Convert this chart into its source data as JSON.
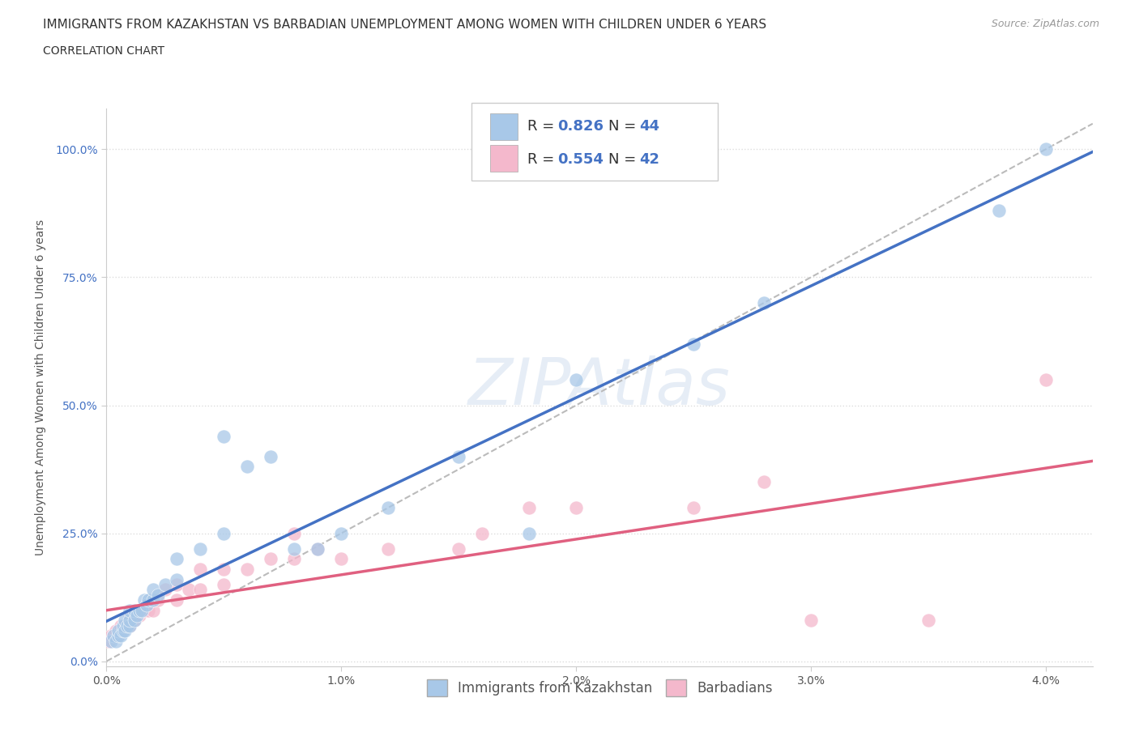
{
  "title": "IMMIGRANTS FROM KAZAKHSTAN VS BARBADIAN UNEMPLOYMENT AMONG WOMEN WITH CHILDREN UNDER 6 YEARS",
  "subtitle": "CORRELATION CHART",
  "source": "Source: ZipAtlas.com",
  "ylabel": "Unemployment Among Women with Children Under 6 years",
  "xlim": [
    0.0,
    0.042
  ],
  "ylim": [
    -0.01,
    1.08
  ],
  "xticks": [
    0.0,
    0.01,
    0.02,
    0.03,
    0.04
  ],
  "xticklabels": [
    "0.0%",
    "1.0%",
    "2.0%",
    "3.0%",
    "4.0%"
  ],
  "yticks": [
    0.0,
    0.25,
    0.5,
    0.75,
    1.0
  ],
  "yticklabels": [
    "0.0%",
    "25.0%",
    "50.0%",
    "75.0%",
    "100.0%"
  ],
  "blue_color": "#A8C8E8",
  "pink_color": "#F4B8CC",
  "blue_line_color": "#4472C4",
  "pink_line_color": "#E06080",
  "dashed_line_color": "#BBBBBB",
  "legend_R1": "0.826",
  "legend_N1": "44",
  "legend_R2": "0.554",
  "legend_N2": "42",
  "legend_label1": "Immigrants from Kazakhstan",
  "legend_label2": "Barbadians",
  "watermark": "ZIPAtlas",
  "background_color": "#FFFFFF",
  "grid_color": "#DDDDDD",
  "blue_scatter_x": [
    0.0002,
    0.0003,
    0.0004,
    0.0005,
    0.0005,
    0.0006,
    0.0007,
    0.0007,
    0.0008,
    0.0008,
    0.0009,
    0.001,
    0.001,
    0.001,
    0.0012,
    0.0012,
    0.0013,
    0.0014,
    0.0015,
    0.0016,
    0.0017,
    0.0018,
    0.002,
    0.002,
    0.0022,
    0.0025,
    0.003,
    0.003,
    0.004,
    0.005,
    0.005,
    0.006,
    0.007,
    0.008,
    0.009,
    0.01,
    0.012,
    0.015,
    0.018,
    0.02,
    0.025,
    0.028,
    0.038,
    0.04
  ],
  "blue_scatter_y": [
    0.04,
    0.05,
    0.04,
    0.05,
    0.06,
    0.05,
    0.06,
    0.07,
    0.06,
    0.08,
    0.07,
    0.07,
    0.08,
    0.1,
    0.08,
    0.1,
    0.09,
    0.1,
    0.1,
    0.12,
    0.11,
    0.12,
    0.12,
    0.14,
    0.13,
    0.15,
    0.16,
    0.2,
    0.22,
    0.25,
    0.44,
    0.38,
    0.4,
    0.22,
    0.22,
    0.25,
    0.3,
    0.4,
    0.25,
    0.55,
    0.62,
    0.7,
    0.88,
    1.0
  ],
  "pink_scatter_x": [
    0.0001,
    0.0002,
    0.0003,
    0.0004,
    0.0005,
    0.0006,
    0.0007,
    0.0008,
    0.001,
    0.001,
    0.0012,
    0.0014,
    0.0015,
    0.0016,
    0.0018,
    0.002,
    0.002,
    0.0022,
    0.0025,
    0.003,
    0.003,
    0.0035,
    0.004,
    0.004,
    0.005,
    0.005,
    0.006,
    0.007,
    0.008,
    0.008,
    0.009,
    0.01,
    0.012,
    0.015,
    0.016,
    0.018,
    0.02,
    0.025,
    0.028,
    0.03,
    0.035,
    0.04
  ],
  "pink_scatter_y": [
    0.04,
    0.05,
    0.05,
    0.06,
    0.05,
    0.07,
    0.06,
    0.07,
    0.07,
    0.09,
    0.08,
    0.09,
    0.1,
    0.1,
    0.1,
    0.1,
    0.12,
    0.12,
    0.14,
    0.12,
    0.15,
    0.14,
    0.14,
    0.18,
    0.15,
    0.18,
    0.18,
    0.2,
    0.2,
    0.25,
    0.22,
    0.2,
    0.22,
    0.22,
    0.25,
    0.3,
    0.3,
    0.3,
    0.35,
    0.08,
    0.08,
    0.55
  ],
  "title_fontsize": 11,
  "subtitle_fontsize": 10,
  "source_fontsize": 9,
  "tick_fontsize": 10,
  "ylabel_fontsize": 10
}
